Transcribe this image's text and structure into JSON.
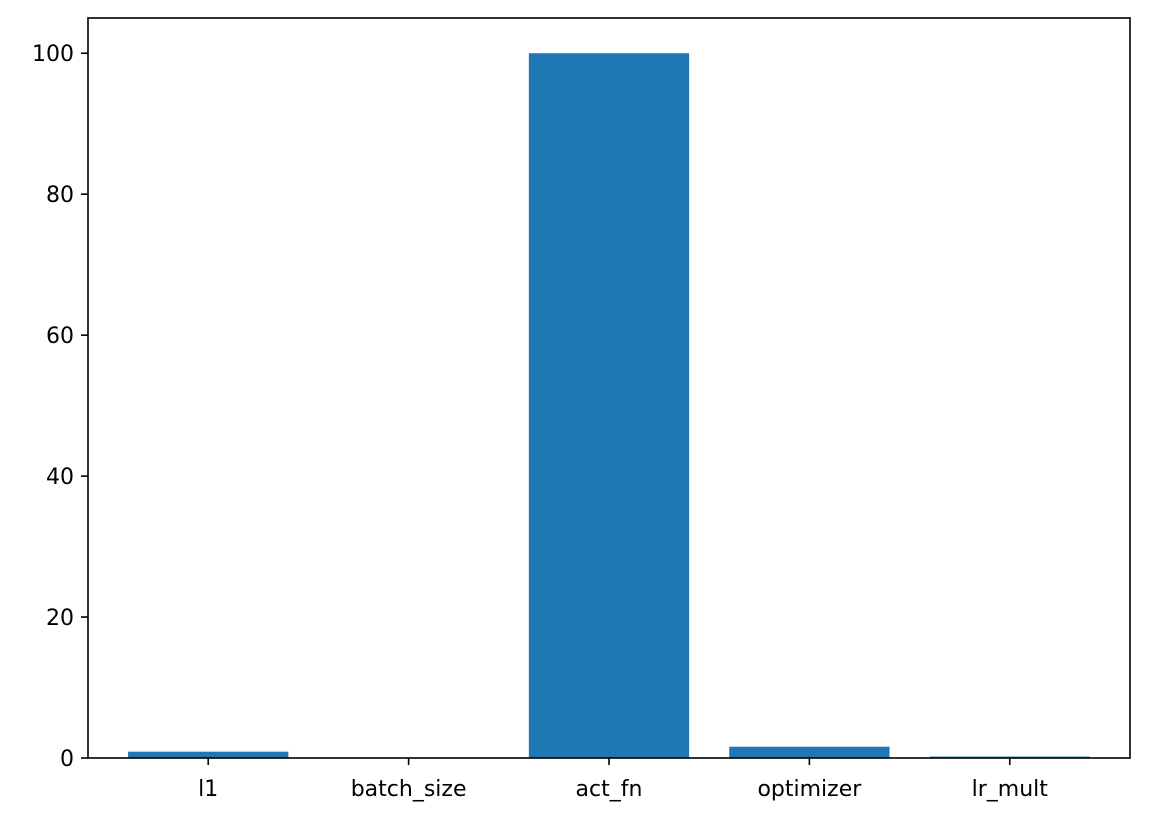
{
  "chart_data": {
    "type": "bar",
    "categories": [
      "l1",
      "batch_size",
      "act_fn",
      "optimizer",
      "lr_mult"
    ],
    "values": [
      0.9,
      0.05,
      100,
      1.6,
      0.2
    ],
    "title": "",
    "xlabel": "",
    "ylabel": "",
    "ylim": [
      0,
      105
    ],
    "yticks": [
      0,
      20,
      40,
      60,
      80,
      100
    ],
    "grid": false,
    "legend": "none",
    "colors": {
      "bar": "#1f77b4",
      "axis": "#000000",
      "background": "#ffffff"
    }
  }
}
